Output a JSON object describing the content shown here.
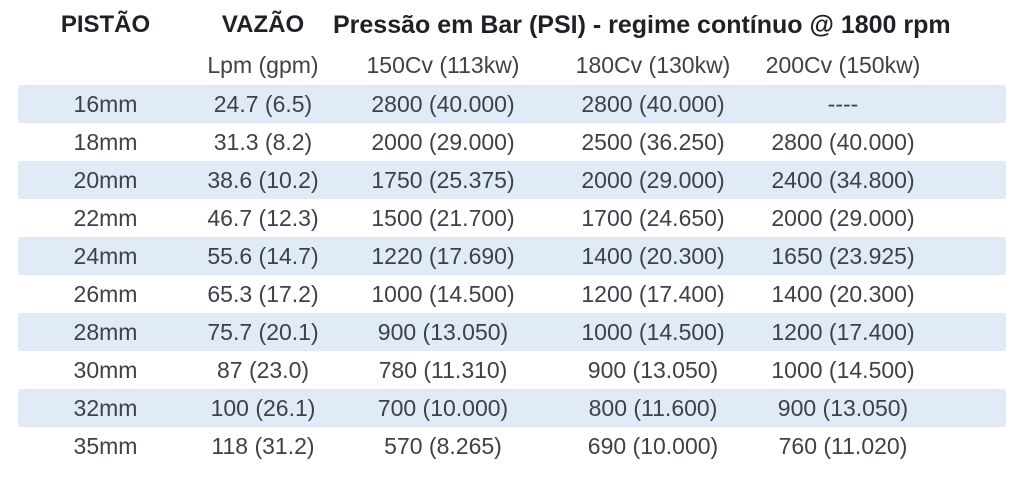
{
  "table": {
    "title": "Pressão em Bar (PSI) - regime contínuo @ 1800 rpm",
    "piston_header": "PISTÃO",
    "flow_header": "VAZÃO",
    "flow_subheader": "Lpm (gpm)",
    "power_subheaders": {
      "p150": "150Cv (113kw)",
      "p180": "180Cv (130kw)",
      "p200": "200Cv (150kw)"
    },
    "rows": [
      {
        "piston": "16mm",
        "flow": "24.7 (6.5)",
        "p150": "2800 (40.000)",
        "p180": "2800 (40.000)",
        "p200": "----"
      },
      {
        "piston": "18mm",
        "flow": "31.3 (8.2)",
        "p150": "2000 (29.000)",
        "p180": "2500 (36.250)",
        "p200": "2800 (40.000)"
      },
      {
        "piston": "20mm",
        "flow": "38.6 (10.2)",
        "p150": "1750 (25.375)",
        "p180": "2000 (29.000)",
        "p200": "2400 (34.800)"
      },
      {
        "piston": "22mm",
        "flow": "46.7 (12.3)",
        "p150": "1500 (21.700)",
        "p180": "1700 (24.650)",
        "p200": "2000 (29.000)"
      },
      {
        "piston": "24mm",
        "flow": "55.6 (14.7)",
        "p150": "1220 (17.690)",
        "p180": "1400 (20.300)",
        "p200": "1650 (23.925)"
      },
      {
        "piston": "26mm",
        "flow": "65.3 (17.2)",
        "p150": "1000 (14.500)",
        "p180": "1200 (17.400)",
        "p200": "1400 (20.300)"
      },
      {
        "piston": "28mm",
        "flow": "75.7 (20.1)",
        "p150": "900 (13.050)",
        "p180": "1000 (14.500)",
        "p200": "1200 (17.400)"
      },
      {
        "piston": "30mm",
        "flow": "87 (23.0)",
        "p150": "780 (11.310)",
        "p180": "900 (13.050)",
        "p200": "1000 (14.500)"
      },
      {
        "piston": "32mm",
        "flow": "100 (26.1)",
        "p150": "700 (10.000)",
        "p180": "800 (11.600)",
        "p200": "900 (13.050)"
      },
      {
        "piston": "35mm",
        "flow": "118 (31.2)",
        "p150": "570 (8.265)",
        "p180": "690 (10.000)",
        "p200": "760 (11.020)"
      }
    ],
    "colors": {
      "stripe": "#e0ebf7",
      "body_text": "#3d4148",
      "header_text": "#1e2125"
    }
  }
}
